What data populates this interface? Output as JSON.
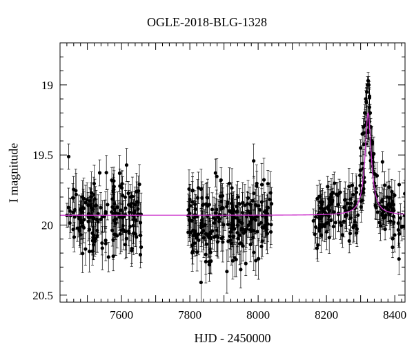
{
  "chart_data": {
    "type": "scatter",
    "title": "OGLE-2018-BLG-1328",
    "xlabel": "HJD - 2450000",
    "ylabel": "I magnitude",
    "xlim": [
      7420,
      8430
    ],
    "ylim": [
      20.55,
      18.7
    ],
    "y_inverted": true,
    "grid": false,
    "x_ticks": [
      7600,
      7800,
      8000,
      8200,
      8400
    ],
    "y_ticks": [
      19,
      19.5,
      20,
      20.5
    ],
    "series": [
      {
        "type": "scatter_with_errorbars",
        "color": "#000000",
        "segments": [
          {
            "x_start": 7440,
            "x_end": 7660,
            "count": 170,
            "mag_center": 19.95,
            "mag_scatter": 0.14,
            "error": 0.12
          },
          {
            "x_start": 7790,
            "x_end": 8040,
            "count": 230,
            "mag_center": 19.97,
            "mag_scatter": 0.14,
            "error": 0.12
          },
          {
            "x_start": 8160,
            "x_end": 8430,
            "count": 200,
            "mag_center": 19.92,
            "mag_scatter": 0.11,
            "error": 0.1
          }
        ],
        "points": [
          [
            8300,
            19.45
          ],
          [
            8305,
            19.35
          ],
          [
            8308,
            19.3
          ],
          [
            8312,
            19.2
          ],
          [
            8315,
            19.1
          ],
          [
            8318,
            19.05
          ],
          [
            8320,
            19.0
          ],
          [
            8322,
            18.97
          ],
          [
            8324,
            19.0
          ],
          [
            8326,
            19.08
          ],
          [
            8328,
            19.2
          ],
          [
            8330,
            19.3
          ],
          [
            8333,
            19.42
          ],
          [
            8336,
            19.55
          ],
          [
            8340,
            19.7
          ],
          [
            8345,
            19.78
          ]
        ]
      },
      {
        "type": "model_line",
        "color": "#cc33cc",
        "baseline": 19.93,
        "peak_x": 8322,
        "peak_mag": 19.2,
        "width_days": 11
      }
    ],
    "seed": 1328
  }
}
